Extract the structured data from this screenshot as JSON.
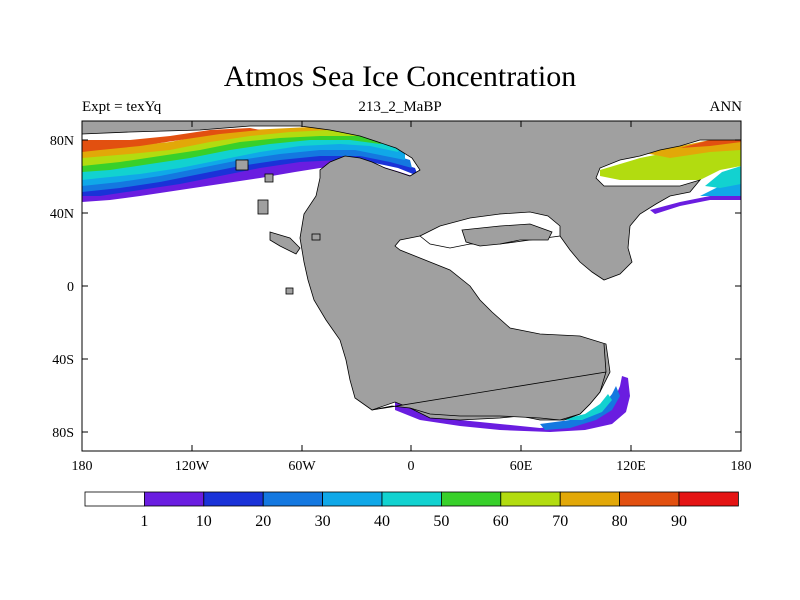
{
  "title": "Atmos Sea Ice Concentration",
  "subtitle_left": "Expt = texYq",
  "subtitle_center": "213_2_MaBP",
  "subtitle_right": "ANN",
  "axes": {
    "x_ticks": [
      "180",
      "120W",
      "60W",
      "0",
      "60E",
      "120E",
      "180"
    ],
    "y_ticks": [
      "80N",
      "40N",
      "0",
      "40S",
      "80S"
    ]
  },
  "colorbar": {
    "labels": [
      "1",
      "10",
      "20",
      "30",
      "40",
      "50",
      "60",
      "70",
      "80",
      "90"
    ],
    "colors": [
      "#ffffff",
      "#6a1de0",
      "#1a32d8",
      "#1478e0",
      "#10a8e8",
      "#12d2d0",
      "#38d02a",
      "#b2dc10",
      "#e2a808",
      "#e25010",
      "#e41414"
    ]
  },
  "land_color": "#a0a0a0",
  "chart_data": {
    "type": "heatmap",
    "variable": "Atmos Sea Ice Concentration",
    "x_range": [
      "180",
      "180"
    ],
    "y_range": [
      "80S",
      "80N"
    ],
    "levels": [
      1,
      10,
      20,
      30,
      40,
      50,
      60,
      70,
      80,
      90
    ]
  }
}
